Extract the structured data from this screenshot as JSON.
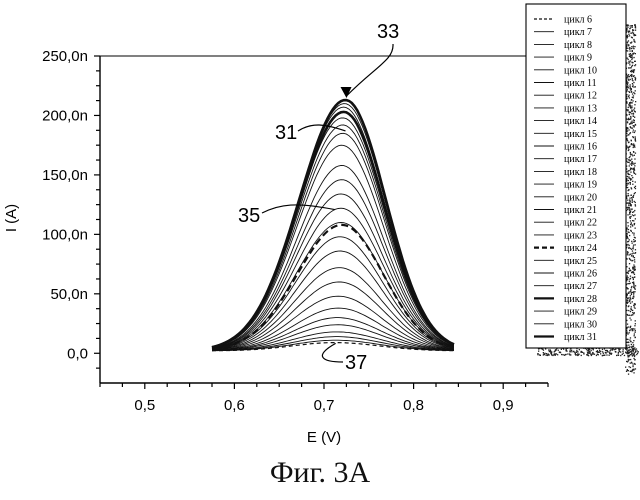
{
  "chart_data": {
    "type": "line",
    "xlabel": "E (V)",
    "ylabel": "I (A)",
    "xlim": [
      0.45,
      0.95
    ],
    "ylim": [
      -25,
      250
    ],
    "xticks": [
      0.5,
      0.6,
      0.7,
      0.8,
      0.9
    ],
    "xtick_labels": [
      "0,5",
      "0,6",
      "0,7",
      "0,8",
      "0,9"
    ],
    "yticks": [
      0,
      50,
      100,
      150,
      200,
      250
    ],
    "ytick_labels": [
      "0,0",
      "50,0n",
      "100,0n",
      "150,0n",
      "200,0n",
      "250,0n"
    ],
    "grid": false,
    "legend_position": "right",
    "curve_shape": {
      "x_start": 0.575,
      "x_end": 0.845,
      "baseline": 2
    },
    "series": [
      {
        "name": "цикл 6",
        "peak_x": 0.712,
        "peak_y": 9,
        "style": "dashed"
      },
      {
        "name": "цикл 7",
        "peak_x": 0.713,
        "peak_y": 11,
        "style": "solid"
      },
      {
        "name": "цикл 8",
        "peak_x": 0.714,
        "peak_y": 14,
        "style": "solid"
      },
      {
        "name": "цикл 9",
        "peak_x": 0.714,
        "peak_y": 18,
        "style": "solid"
      },
      {
        "name": "цикл 10",
        "peak_x": 0.715,
        "peak_y": 24,
        "style": "solid"
      },
      {
        "name": "цикл 11",
        "peak_x": 0.715,
        "peak_y": 30,
        "style": "solid"
      },
      {
        "name": "цикл 12",
        "peak_x": 0.716,
        "peak_y": 38,
        "style": "solid"
      },
      {
        "name": "цикл 13",
        "peak_x": 0.716,
        "peak_y": 48,
        "style": "solid"
      },
      {
        "name": "цикл 14",
        "peak_x": 0.717,
        "peak_y": 60,
        "style": "solid"
      },
      {
        "name": "цикл 15",
        "peak_x": 0.717,
        "peak_y": 72,
        "style": "solid"
      },
      {
        "name": "цикл 16",
        "peak_x": 0.718,
        "peak_y": 86,
        "style": "solid"
      },
      {
        "name": "цикл 17",
        "peak_x": 0.718,
        "peak_y": 98,
        "style": "solid"
      },
      {
        "name": "цикл 18",
        "peak_x": 0.719,
        "peak_y": 110,
        "style": "solid"
      },
      {
        "name": "цикл 19",
        "peak_x": 0.719,
        "peak_y": 122,
        "style": "solid"
      },
      {
        "name": "цикл 20",
        "peak_x": 0.719,
        "peak_y": 134,
        "style": "solid"
      },
      {
        "name": "цикл 21",
        "peak_x": 0.72,
        "peak_y": 146,
        "style": "solid"
      },
      {
        "name": "цикл 22",
        "peak_x": 0.72,
        "peak_y": 158,
        "style": "solid"
      },
      {
        "name": "цикл 23",
        "peak_x": 0.72,
        "peak_y": 175,
        "style": "solid"
      },
      {
        "name": "цикл 24",
        "peak_x": 0.72,
        "peak_y": 108,
        "style": "bold-dashed"
      },
      {
        "name": "цикл 25",
        "peak_x": 0.721,
        "peak_y": 185,
        "style": "solid"
      },
      {
        "name": "цикл 26",
        "peak_x": 0.721,
        "peak_y": 192,
        "style": "solid"
      },
      {
        "name": "цикл 27",
        "peak_x": 0.721,
        "peak_y": 198,
        "style": "solid"
      },
      {
        "name": "цикл 28",
        "peak_x": 0.722,
        "peak_y": 203,
        "style": "bold"
      },
      {
        "name": "цикл 29",
        "peak_x": 0.722,
        "peak_y": 207,
        "style": "solid"
      },
      {
        "name": "цикл 30",
        "peak_x": 0.723,
        "peak_y": 210,
        "style": "solid"
      },
      {
        "name": "цикл 31",
        "peak_x": 0.724,
        "peak_y": 213,
        "style": "bold"
      }
    ],
    "annotations": [
      {
        "text": "33",
        "target_x": 0.724,
        "target_y": 213
      },
      {
        "text": "31",
        "target_x": 0.72,
        "target_y": 192
      },
      {
        "text": "35",
        "target_x": 0.712,
        "target_y": 120
      },
      {
        "text": "37",
        "target_x": 0.715,
        "target_y": 10
      }
    ]
  },
  "figure": {
    "caption": "Фиг. 3A"
  }
}
